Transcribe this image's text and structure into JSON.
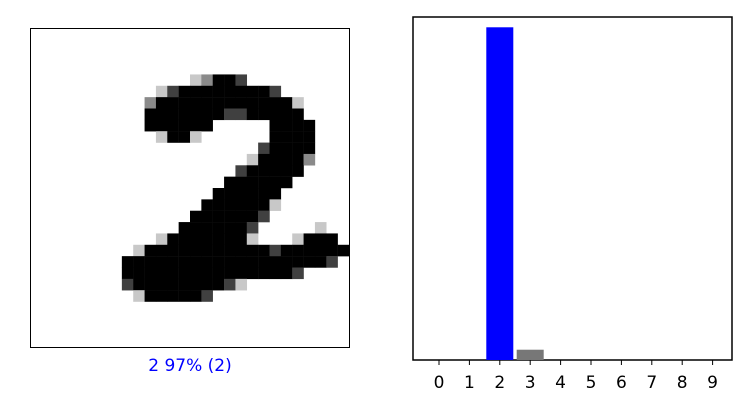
{
  "image_panel": {
    "caption": "2 97% (2)",
    "caption_color": "#0000ff",
    "digit": "2"
  },
  "chart_data": {
    "type": "bar",
    "categories": [
      "0",
      "1",
      "2",
      "3",
      "4",
      "5",
      "6",
      "7",
      "8",
      "9"
    ],
    "values": [
      0.0,
      0.0,
      0.97,
      0.03,
      0.0,
      0.0,
      0.0,
      0.0,
      0.0,
      0.0
    ],
    "ylim": [
      0,
      1
    ],
    "highlight_index": 2,
    "highlight_color": "#0000ff",
    "bar_color": "#777777",
    "title": "",
    "xlabel": "",
    "ylabel": "",
    "grid": false
  }
}
